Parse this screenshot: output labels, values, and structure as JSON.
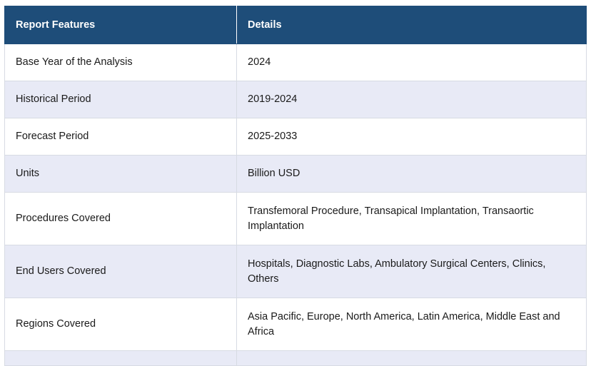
{
  "table": {
    "headers": [
      "Report Features",
      "Details"
    ],
    "rows": [
      {
        "feature": "Base Year of the Analysis",
        "details": "2024"
      },
      {
        "feature": "Historical Period",
        "details": "2019-2024"
      },
      {
        "feature": "Forecast Period",
        "details": "2025-2033"
      },
      {
        "feature": "Units",
        "details": "Billion USD"
      },
      {
        "feature": "Procedures Covered",
        "details": "Transfemoral Procedure, Transapical Implantation, Transaortic Implantation"
      },
      {
        "feature": "End Users Covered",
        "details": "Hospitals, Diagnostic Labs, Ambulatory Surgical Centers, Clinics, Others"
      },
      {
        "feature": "Regions Covered",
        "details": " Asia Pacific, Europe, North America, Latin America, Middle East and Africa"
      }
    ]
  },
  "colors": {
    "header_bg": "#1e4d79",
    "header_text": "#ffffff",
    "stripe_bg": "#e8eaf6",
    "border": "#d7dbe3"
  }
}
